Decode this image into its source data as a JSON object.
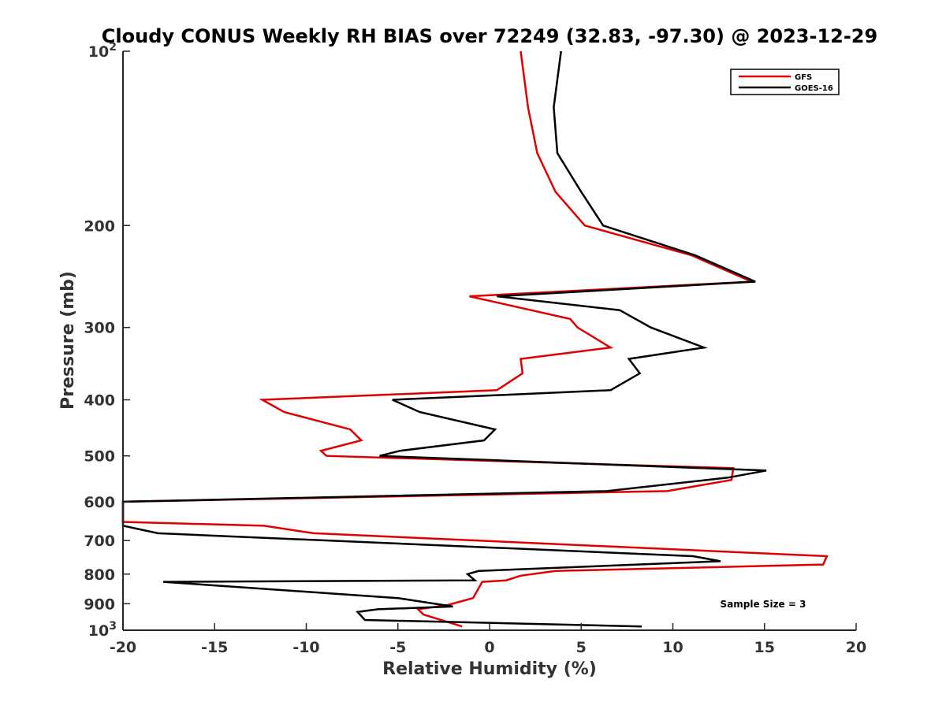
{
  "chart_data": {
    "type": "line",
    "title": "Cloudy CONUS Weekly RH BIAS over 72249 (32.83, -97.30) @ 2023-12-29",
    "xlabel": "Relative Humidity (%)",
    "ylabel": "Pressure (mb)",
    "xlim": [
      -20,
      20
    ],
    "ylim": [
      100,
      1000
    ],
    "y_scale": "log",
    "y_reversed": true,
    "x_ticks": [
      -20,
      -15,
      -10,
      -5,
      0,
      5,
      10,
      15,
      20
    ],
    "y_ticks": [
      {
        "value": 100,
        "label": "10",
        "sup": "2"
      },
      {
        "value": 200,
        "label": "200",
        "sup": ""
      },
      {
        "value": 300,
        "label": "300",
        "sup": ""
      },
      {
        "value": 400,
        "label": "400",
        "sup": ""
      },
      {
        "value": 500,
        "label": "500",
        "sup": ""
      },
      {
        "value": 600,
        "label": "600",
        "sup": ""
      },
      {
        "value": 700,
        "label": "700",
        "sup": ""
      },
      {
        "value": 800,
        "label": "800",
        "sup": ""
      },
      {
        "value": 900,
        "label": "900",
        "sup": ""
      },
      {
        "value": 1000,
        "label": "10",
        "sup": "3"
      }
    ],
    "grid": false,
    "legend_position": "top-right",
    "series": [
      {
        "name": "GFS",
        "color": "#e00000",
        "points": [
          [
            1.7,
            100
          ],
          [
            2.1,
            125
          ],
          [
            2.6,
            150
          ],
          [
            3.6,
            175
          ],
          [
            5.2,
            200
          ],
          [
            11.0,
            225
          ],
          [
            14.3,
            250
          ],
          [
            -1.1,
            265
          ],
          [
            4.4,
            290
          ],
          [
            4.8,
            300
          ],
          [
            6.6,
            325
          ],
          [
            1.7,
            340
          ],
          [
            1.8,
            360
          ],
          [
            0.4,
            385
          ],
          [
            -12.4,
            400
          ],
          [
            -11.2,
            420
          ],
          [
            -7.6,
            450
          ],
          [
            -7.0,
            470
          ],
          [
            -9.2,
            490
          ],
          [
            -8.9,
            500
          ],
          [
            13.3,
            525
          ],
          [
            13.2,
            550
          ],
          [
            9.7,
            575
          ],
          [
            -20.0,
            600
          ],
          [
            -20.0,
            650
          ],
          [
            -12.3,
            660
          ],
          [
            -9.6,
            680
          ],
          [
            18.4,
            745
          ],
          [
            18.2,
            770
          ],
          [
            3.6,
            790
          ],
          [
            1.7,
            805
          ],
          [
            0.9,
            820
          ],
          [
            -0.4,
            825
          ],
          [
            -0.9,
            880
          ],
          [
            -2.3,
            905
          ],
          [
            -3.9,
            920
          ],
          [
            -3.6,
            940
          ],
          [
            -1.5,
            985
          ]
        ]
      },
      {
        "name": "GOES-16",
        "color": "#000000",
        "points": [
          [
            3.9,
            100
          ],
          [
            3.5,
            125
          ],
          [
            3.7,
            150
          ],
          [
            5.0,
            175
          ],
          [
            6.2,
            200
          ],
          [
            11.2,
            225
          ],
          [
            14.5,
            250
          ],
          [
            0.4,
            265
          ],
          [
            7.1,
            280
          ],
          [
            8.8,
            300
          ],
          [
            11.7,
            325
          ],
          [
            7.6,
            340
          ],
          [
            8.2,
            360
          ],
          [
            6.6,
            385
          ],
          [
            -5.3,
            400
          ],
          [
            -3.8,
            420
          ],
          [
            0.3,
            450
          ],
          [
            -0.3,
            470
          ],
          [
            -4.9,
            490
          ],
          [
            -6.0,
            500
          ],
          [
            15.1,
            530
          ],
          [
            13.0,
            545
          ],
          [
            6.4,
            575
          ],
          [
            -20.0,
            600
          ],
          [
            -20.0,
            660
          ],
          [
            -18.1,
            680
          ],
          [
            11.1,
            745
          ],
          [
            12.6,
            760
          ],
          [
            -0.6,
            790
          ],
          [
            -1.2,
            800
          ],
          [
            -0.8,
            820
          ],
          [
            -17.8,
            825
          ],
          [
            -5.0,
            880
          ],
          [
            -2.0,
            910
          ],
          [
            -6.1,
            920
          ],
          [
            -7.2,
            930
          ],
          [
            -6.8,
            960
          ],
          [
            8.3,
            985
          ]
        ]
      }
    ],
    "annotation": "Sample Size = 3"
  }
}
